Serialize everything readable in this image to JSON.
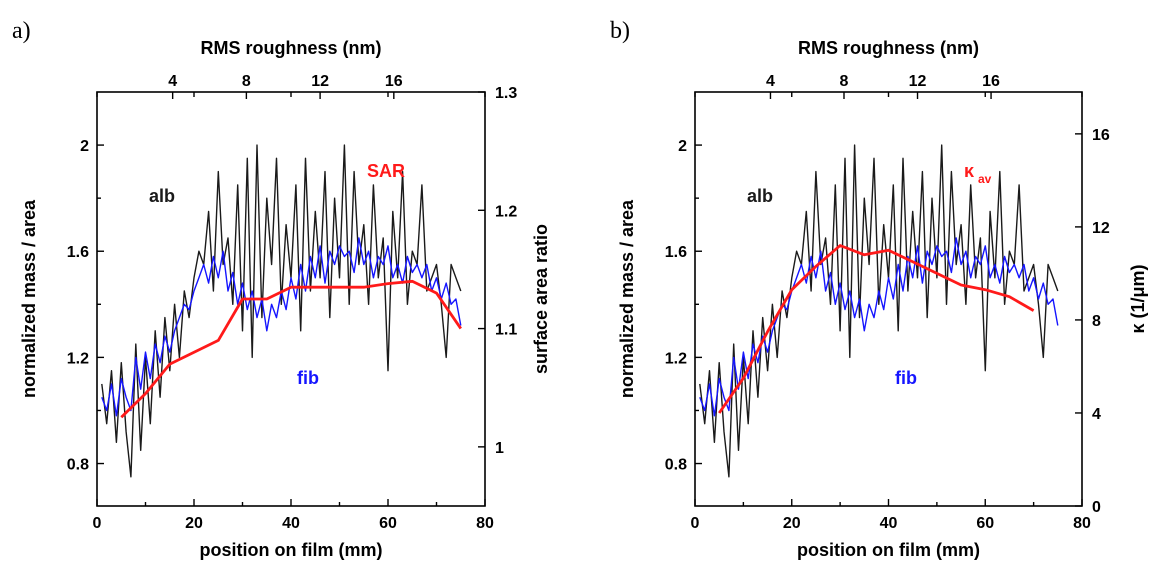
{
  "chart_data": [
    {
      "type": "line",
      "panel_label": "a)",
      "xlabel": "position on film (mm)",
      "xlim": [
        0,
        80
      ],
      "xticks": [
        "0",
        "20",
        "40",
        "60",
        "80"
      ],
      "top_xlabel": "RMS roughness (nm)",
      "top_xticks": [
        "4",
        "8",
        "12",
        "16"
      ],
      "top_xtick_positions": [
        15.6,
        30.8,
        46.0,
        61.2
      ],
      "ylabel": "normalized mass / area",
      "ylim": [
        0.64,
        2.2
      ],
      "yticks": [
        "0.8",
        "1.2",
        "1.6",
        "2"
      ],
      "y2label": "surface area ratio",
      "y2lim": [
        0.95,
        1.3
      ],
      "y2ticks": [
        "1",
        "1.1",
        "1.2",
        "1.3"
      ],
      "grid": false,
      "labels": {
        "alb": "alb",
        "fib": "fib",
        "right": "SAR"
      },
      "colors": {
        "alb": "#1a1a1a",
        "fib": "#1515ff",
        "right": "#ff1a1a"
      },
      "series": [
        {
          "name": "alb",
          "axis": "left",
          "x": [
            1,
            2,
            3,
            4,
            5,
            6,
            7,
            8,
            9,
            10,
            11,
            12,
            13,
            14,
            15,
            16,
            17,
            18,
            19,
            20,
            21,
            22,
            23,
            24,
            25,
            26,
            27,
            28,
            29,
            30,
            31,
            32,
            33,
            34,
            35,
            36,
            37,
            38,
            39,
            40,
            41,
            42,
            43,
            44,
            45,
            46,
            47,
            48,
            49,
            50,
            51,
            52,
            53,
            54,
            55,
            56,
            57,
            58,
            59,
            60,
            61,
            62,
            63,
            64,
            65,
            66,
            67,
            68,
            69,
            70,
            71,
            72,
            73,
            74,
            75
          ],
          "y": [
            1.1,
            0.95,
            1.15,
            0.88,
            1.18,
            0.92,
            0.75,
            1.25,
            0.85,
            1.2,
            0.95,
            1.3,
            1.05,
            1.35,
            1.15,
            1.4,
            1.2,
            1.45,
            1.35,
            1.5,
            1.6,
            1.55,
            1.75,
            1.45,
            1.9,
            1.55,
            1.65,
            1.4,
            1.85,
            1.3,
            1.95,
            1.2,
            2.0,
            1.35,
            1.8,
            1.55,
            1.95,
            1.4,
            1.7,
            1.5,
            1.85,
            1.3,
            1.95,
            1.45,
            1.75,
            1.5,
            1.9,
            1.35,
            1.8,
            1.5,
            2.0,
            1.4,
            1.9,
            1.55,
            1.7,
            1.4,
            1.85,
            1.5,
            1.65,
            1.15,
            1.75,
            1.5,
            1.9,
            1.4,
            1.6,
            1.55,
            1.85,
            1.45,
            1.5,
            1.55,
            1.4,
            1.2,
            1.55,
            1.5,
            1.45
          ]
        },
        {
          "name": "fib",
          "axis": "left",
          "x": [
            1,
            2,
            3,
            4,
            5,
            6,
            7,
            8,
            9,
            10,
            11,
            12,
            13,
            14,
            15,
            16,
            17,
            18,
            19,
            20,
            21,
            22,
            23,
            24,
            25,
            26,
            27,
            28,
            29,
            30,
            31,
            32,
            33,
            34,
            35,
            36,
            37,
            38,
            39,
            40,
            41,
            42,
            43,
            44,
            45,
            46,
            47,
            48,
            49,
            50,
            51,
            52,
            53,
            54,
            55,
            56,
            57,
            58,
            59,
            60,
            61,
            62,
            63,
            64,
            65,
            66,
            67,
            68,
            69,
            70,
            71,
            72,
            73,
            74,
            75
          ],
          "y": [
            1.05,
            1.0,
            1.1,
            0.98,
            1.12,
            1.05,
            1.0,
            1.2,
            1.08,
            1.22,
            1.12,
            1.25,
            1.18,
            1.28,
            1.22,
            1.3,
            1.35,
            1.4,
            1.38,
            1.45,
            1.5,
            1.55,
            1.48,
            1.58,
            1.5,
            1.6,
            1.45,
            1.52,
            1.4,
            1.48,
            1.38,
            1.45,
            1.35,
            1.42,
            1.3,
            1.4,
            1.35,
            1.45,
            1.38,
            1.5,
            1.42,
            1.55,
            1.45,
            1.58,
            1.5,
            1.62,
            1.48,
            1.6,
            1.55,
            1.62,
            1.58,
            1.6,
            1.52,
            1.65,
            1.55,
            1.6,
            1.5,
            1.58,
            1.55,
            1.62,
            1.5,
            1.55,
            1.48,
            1.58,
            1.52,
            1.55,
            1.5,
            1.55,
            1.45,
            1.5,
            1.42,
            1.48,
            1.4,
            1.42,
            1.32
          ]
        },
        {
          "name": "SAR",
          "axis": "right",
          "x": [
            5,
            10,
            15,
            25,
            30,
            35,
            40,
            45,
            50,
            55,
            60,
            65,
            70,
            75
          ],
          "y": [
            1.025,
            1.045,
            1.07,
            1.09,
            1.125,
            1.125,
            1.135,
            1.135,
            1.135,
            1.135,
            1.138,
            1.14,
            1.13,
            1.1
          ]
        }
      ]
    },
    {
      "type": "line",
      "panel_label": "b)",
      "xlabel": "position on film (mm)",
      "xlim": [
        0,
        80
      ],
      "xticks": [
        "0",
        "20",
        "40",
        "60",
        "80"
      ],
      "top_xlabel": "RMS roughness (nm)",
      "top_xticks": [
        "4",
        "8",
        "12",
        "16"
      ],
      "top_xtick_positions": [
        15.6,
        30.8,
        46.0,
        61.2
      ],
      "ylabel": "normalized mass / area",
      "ylim": [
        0.64,
        2.2
      ],
      "yticks": [
        "0.8",
        "1.2",
        "1.6",
        "2"
      ],
      "y2label": "κ (1/μm)",
      "y2lim": [
        0,
        17.8
      ],
      "y2ticks": [
        "0",
        "4",
        "8",
        "12",
        "16"
      ],
      "grid": false,
      "labels": {
        "alb": "alb",
        "fib": "fib",
        "right": "κ",
        "right_sub": "av"
      },
      "colors": {
        "alb": "#1a1a1a",
        "fib": "#1515ff",
        "right": "#ff1a1a"
      },
      "series": [
        {
          "name": "alb",
          "axis": "left",
          "x": [
            1,
            2,
            3,
            4,
            5,
            6,
            7,
            8,
            9,
            10,
            11,
            12,
            13,
            14,
            15,
            16,
            17,
            18,
            19,
            20,
            21,
            22,
            23,
            24,
            25,
            26,
            27,
            28,
            29,
            30,
            31,
            32,
            33,
            34,
            35,
            36,
            37,
            38,
            39,
            40,
            41,
            42,
            43,
            44,
            45,
            46,
            47,
            48,
            49,
            50,
            51,
            52,
            53,
            54,
            55,
            56,
            57,
            58,
            59,
            60,
            61,
            62,
            63,
            64,
            65,
            66,
            67,
            68,
            69,
            70,
            71,
            72,
            73,
            74,
            75
          ],
          "y": [
            1.1,
            0.95,
            1.15,
            0.88,
            1.18,
            0.92,
            0.75,
            1.25,
            0.85,
            1.2,
            0.95,
            1.3,
            1.05,
            1.35,
            1.15,
            1.4,
            1.2,
            1.45,
            1.35,
            1.5,
            1.6,
            1.55,
            1.75,
            1.45,
            1.9,
            1.55,
            1.65,
            1.4,
            1.85,
            1.3,
            1.95,
            1.2,
            2.0,
            1.35,
            1.8,
            1.55,
            1.95,
            1.4,
            1.7,
            1.5,
            1.85,
            1.3,
            1.95,
            1.45,
            1.75,
            1.5,
            1.9,
            1.35,
            1.8,
            1.5,
            2.0,
            1.4,
            1.9,
            1.55,
            1.7,
            1.4,
            1.85,
            1.5,
            1.65,
            1.15,
            1.75,
            1.5,
            1.9,
            1.4,
            1.6,
            1.55,
            1.85,
            1.45,
            1.5,
            1.55,
            1.4,
            1.2,
            1.55,
            1.5,
            1.45
          ]
        },
        {
          "name": "fib",
          "axis": "left",
          "x": [
            1,
            2,
            3,
            4,
            5,
            6,
            7,
            8,
            9,
            10,
            11,
            12,
            13,
            14,
            15,
            16,
            17,
            18,
            19,
            20,
            21,
            22,
            23,
            24,
            25,
            26,
            27,
            28,
            29,
            30,
            31,
            32,
            33,
            34,
            35,
            36,
            37,
            38,
            39,
            40,
            41,
            42,
            43,
            44,
            45,
            46,
            47,
            48,
            49,
            50,
            51,
            52,
            53,
            54,
            55,
            56,
            57,
            58,
            59,
            60,
            61,
            62,
            63,
            64,
            65,
            66,
            67,
            68,
            69,
            70,
            71,
            72,
            73,
            74,
            75
          ],
          "y": [
            1.05,
            1.0,
            1.1,
            0.98,
            1.12,
            1.05,
            1.0,
            1.2,
            1.08,
            1.22,
            1.12,
            1.25,
            1.18,
            1.28,
            1.22,
            1.3,
            1.35,
            1.4,
            1.38,
            1.45,
            1.5,
            1.55,
            1.48,
            1.58,
            1.5,
            1.6,
            1.45,
            1.52,
            1.4,
            1.48,
            1.38,
            1.45,
            1.35,
            1.42,
            1.3,
            1.4,
            1.35,
            1.45,
            1.38,
            1.5,
            1.42,
            1.55,
            1.45,
            1.58,
            1.5,
            1.62,
            1.48,
            1.6,
            1.55,
            1.62,
            1.58,
            1.6,
            1.52,
            1.65,
            1.55,
            1.6,
            1.5,
            1.58,
            1.55,
            1.62,
            1.5,
            1.55,
            1.48,
            1.58,
            1.52,
            1.55,
            1.5,
            1.55,
            1.45,
            1.5,
            1.42,
            1.48,
            1.4,
            1.42,
            1.32
          ]
        },
        {
          "name": "κav",
          "axis": "right",
          "x": [
            5,
            10,
            15,
            20,
            25,
            30,
            35,
            40,
            45,
            50,
            55,
            60,
            65,
            70
          ],
          "y": [
            4.0,
            5.5,
            7.5,
            9.3,
            10.3,
            11.2,
            10.8,
            11.0,
            10.5,
            10.0,
            9.5,
            9.3,
            9.0,
            8.4
          ]
        }
      ]
    }
  ]
}
